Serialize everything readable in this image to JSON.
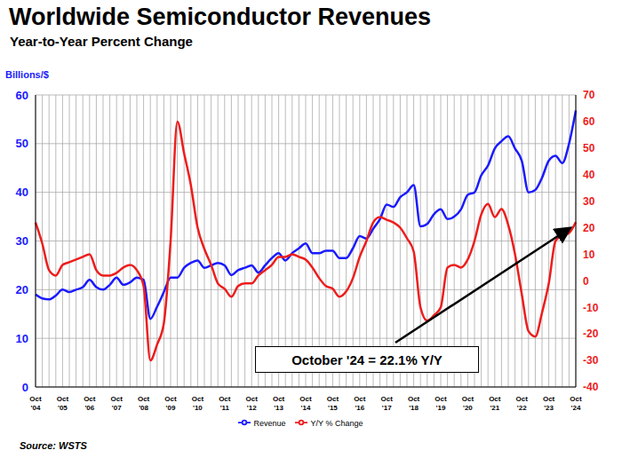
{
  "chart_data": {
    "type": "line",
    "title": "Worldwide Semiconductor Revenues",
    "subtitle": "Year-to-Year Percent Change",
    "y_label": "Billions/$",
    "source": "Source: WSTS",
    "annotation": "October '24 = 22.1% Y/Y",
    "categories": [
      "Oct '04",
      null,
      null,
      null,
      "Oct '05",
      null,
      null,
      null,
      "Oct '06",
      null,
      null,
      null,
      "Oct '07",
      null,
      null,
      null,
      "Oct '08",
      null,
      null,
      null,
      "Oct '09",
      null,
      null,
      null,
      "Oct '10",
      null,
      null,
      null,
      "Oct '11",
      null,
      null,
      null,
      "Oct '12",
      null,
      null,
      null,
      "Oct '13",
      null,
      null,
      null,
      "Oct '14",
      null,
      null,
      null,
      "Oct '15",
      null,
      null,
      null,
      "Oct '16",
      null,
      null,
      null,
      "Oct '17",
      null,
      null,
      null,
      "Oct '18",
      null,
      null,
      null,
      "Oct '19",
      null,
      null,
      null,
      "Oct '20",
      null,
      null,
      null,
      "Oct '21",
      null,
      null,
      null,
      "Oct '22",
      null,
      null,
      null,
      "Oct '23",
      null,
      null,
      null,
      "Oct '24"
    ],
    "series": [
      {
        "name": "Revenue",
        "color": "#1a1aff",
        "values": [
          19.0,
          18.2,
          18.0,
          18.8,
          20.0,
          19.5,
          20.0,
          20.5,
          22.0,
          20.5,
          20.0,
          21.0,
          22.5,
          21.0,
          21.5,
          22.5,
          22.0,
          14.0,
          16.5,
          19.5,
          22.5,
          22.5,
          24.5,
          25.5,
          26.0,
          24.5,
          25.0,
          25.5,
          25.0,
          23.0,
          24.0,
          24.5,
          25.0,
          23.5,
          25.0,
          26.5,
          27.5,
          26.0,
          27.5,
          28.5,
          29.5,
          27.5,
          27.5,
          28.0,
          28.0,
          26.5,
          26.5,
          28.5,
          31.0,
          30.5,
          32.5,
          34.5,
          37.5,
          37.0,
          39.0,
          40.0,
          41.5,
          33.0,
          33.5,
          35.5,
          36.5,
          34.5,
          35.0,
          36.5,
          39.5,
          40.0,
          43.5,
          45.5,
          49.0,
          50.5,
          51.5,
          49.0,
          46.5,
          40.0,
          40.5,
          43.0,
          46.5,
          47.5,
          46.0,
          50.0,
          56.8
        ]
      },
      {
        "name": "Y/Y % Change",
        "color": "#ee1c1c",
        "axis": "y2",
        "values": [
          22,
          14,
          4,
          2,
          6,
          7,
          8,
          9,
          10,
          4,
          2,
          2,
          3,
          5,
          6,
          4,
          -2,
          -30,
          -24,
          -16,
          15,
          60,
          48,
          36,
          20,
          12,
          6,
          -1,
          -3,
          -6,
          -2,
          -1,
          -1,
          2,
          4,
          6,
          9,
          9,
          10,
          9,
          8,
          5,
          1,
          -2,
          -3,
          -6,
          -4,
          1,
          9,
          15,
          22,
          24,
          23,
          22,
          20,
          16,
          11,
          -10,
          -15,
          -13,
          -10,
          5,
          6,
          5,
          8,
          15,
          25,
          29,
          24,
          27,
          21,
          10,
          -5,
          -19,
          -21,
          -12,
          -1,
          15,
          17,
          18,
          22.1
        ]
      }
    ],
    "ylim": [
      0,
      60
    ],
    "yticks": [
      0,
      10,
      20,
      30,
      40,
      50,
      60
    ],
    "y2lim": [
      -40,
      70
    ],
    "y2ticks": [
      -40,
      -30,
      -20,
      -10,
      0,
      10,
      20,
      30,
      40,
      50,
      60,
      70
    ],
    "grid": true,
    "legend": "bottom"
  }
}
